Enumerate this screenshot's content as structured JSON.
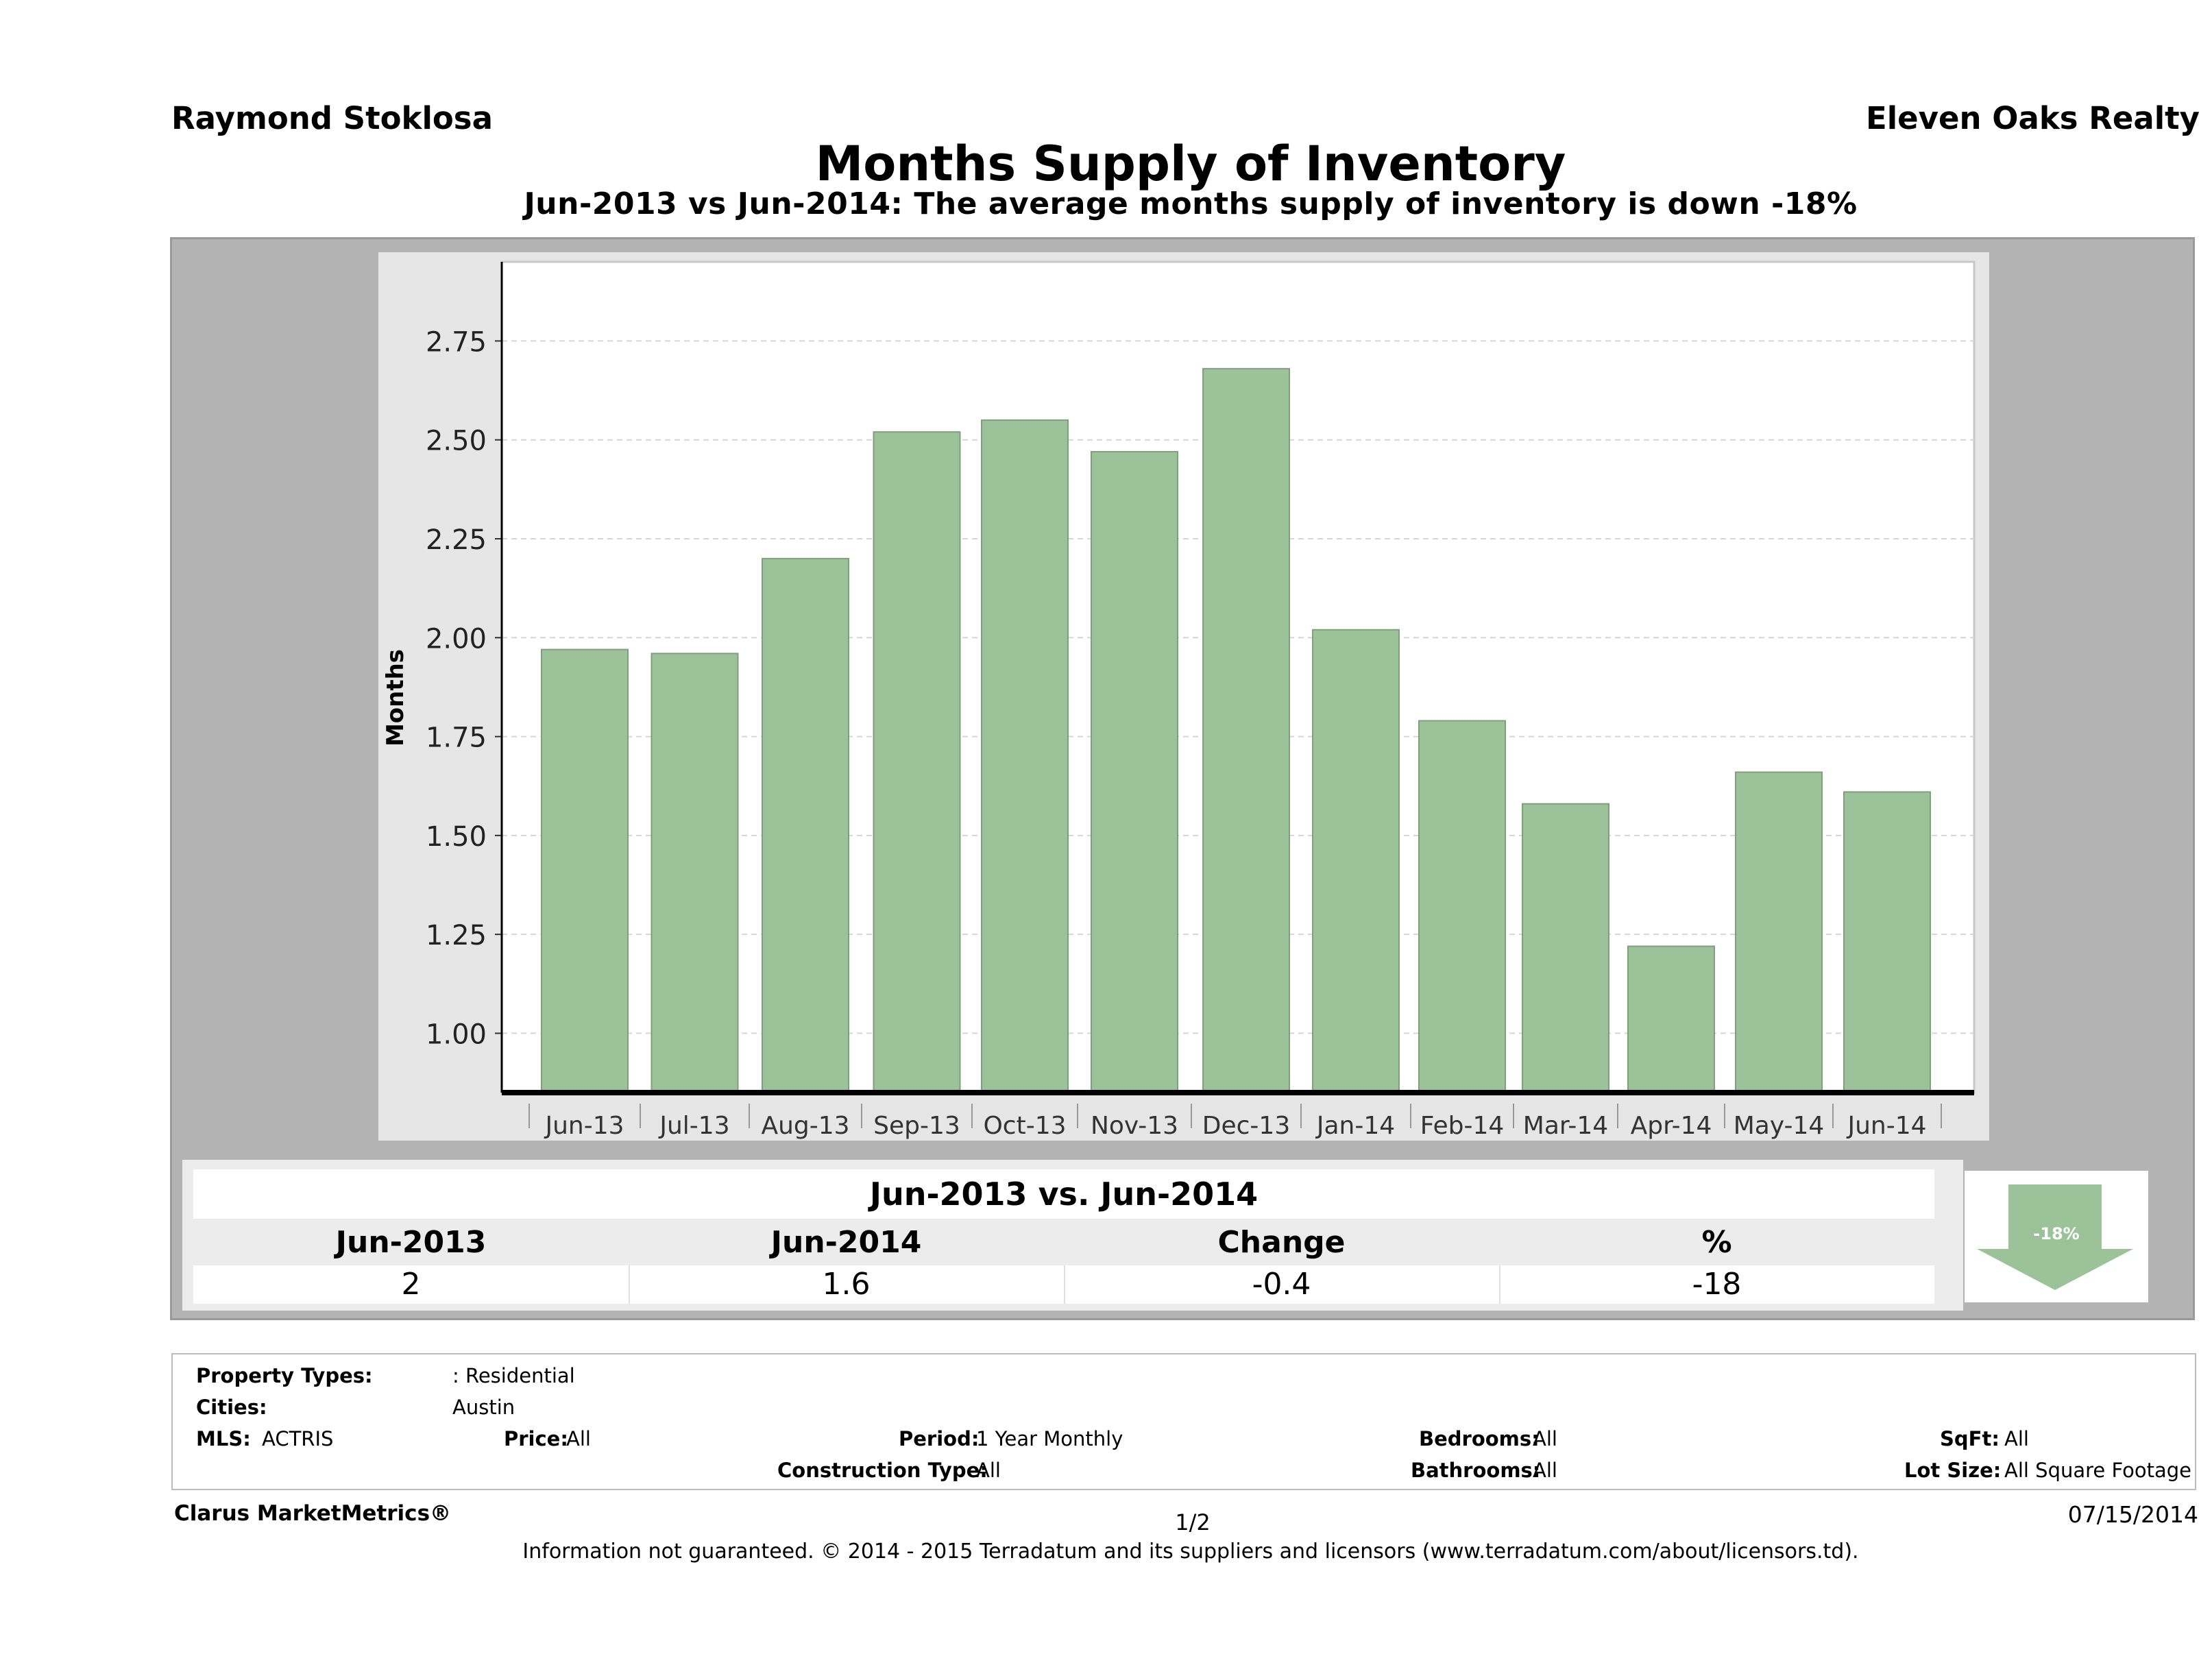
{
  "header": {
    "agent": "Raymond Stoklosa",
    "company": "Eleven Oaks Realty",
    "title": "Months Supply of Inventory",
    "subtitle": "Jun-2013 vs Jun-2014: The average months supply of inventory is down -18%"
  },
  "chart_data": {
    "type": "bar",
    "title": "Months Supply of Inventory",
    "ylabel": "Months",
    "xlabel": "",
    "categories": [
      "Jun-13",
      "Jul-13",
      "Aug-13",
      "Sep-13",
      "Oct-13",
      "Nov-13",
      "Dec-13",
      "Jan-14",
      "Feb-14",
      "Mar-14",
      "Apr-14",
      "May-14",
      "Jun-14"
    ],
    "values": [
      1.97,
      1.96,
      2.2,
      2.52,
      2.55,
      2.47,
      2.68,
      2.02,
      1.79,
      1.58,
      1.22,
      1.66,
      1.61
    ],
    "ylim": [
      0.85,
      2.95
    ],
    "yticks": [
      "1.00",
      "1.25",
      "1.50",
      "1.75",
      "2.00",
      "2.25",
      "2.50",
      "2.75"
    ],
    "grid": true,
    "bar_color": "#9cc29a"
  },
  "summary": {
    "title": "Jun-2013 vs. Jun-2014",
    "headers": [
      "Jun-2013",
      "Jun-2014",
      "Change",
      "%"
    ],
    "values": [
      "2",
      "1.6",
      "-0.4",
      "-18"
    ],
    "badge": "-18%",
    "badge_color": "#9cc29a"
  },
  "criteria": {
    "property_types_label": "Property Types:",
    "property_types_value": ": Residential",
    "cities_label": "Cities:",
    "cities_value": "Austin",
    "mls_label": "MLS:",
    "mls_value": "ACTRIS",
    "price_label": "Price:",
    "price_value": "All",
    "period_label": "Period:",
    "period_value": "1 Year Monthly",
    "bedrooms_label": "Bedrooms:",
    "bedrooms_value": "All",
    "sqft_label": "SqFt:",
    "sqft_value": "All",
    "construction_label": "Construction Type:",
    "construction_value": "All",
    "bathrooms_label": "Bathrooms:",
    "bathrooms_value": "All",
    "lotsize_label": "Lot Size:",
    "lotsize_value": "All Square Footage"
  },
  "footer": {
    "brand": "Clarus MarketMetrics®",
    "page": "1/2",
    "date": "07/15/2014",
    "disclaimer": "Information not guaranteed. © 2014 - 2015 Terradatum and its suppliers and licensors (www.terradatum.com/about/licensors.td)."
  }
}
